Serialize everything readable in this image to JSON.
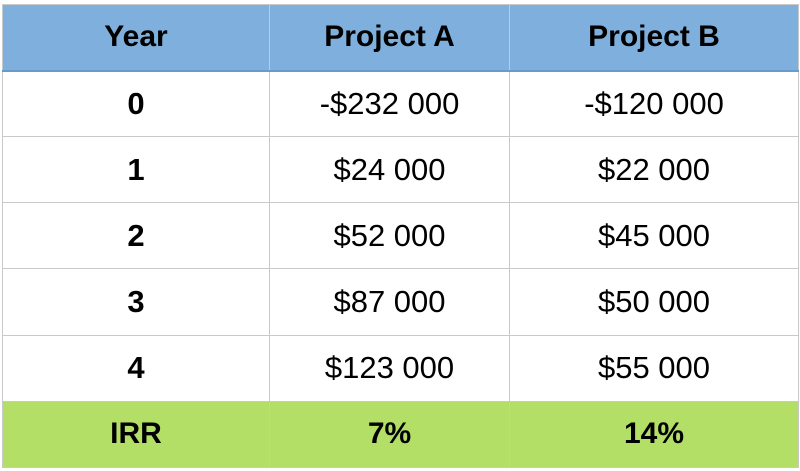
{
  "table": {
    "headers": [
      "Year",
      "Project A",
      "Project B"
    ],
    "rows": [
      {
        "year": "0",
        "project_a": "-$232 000",
        "project_b": "-$120 000"
      },
      {
        "year": "1",
        "project_a": "$24 000",
        "project_b": "$22 000"
      },
      {
        "year": "2",
        "project_a": "$52 000",
        "project_b": "$45 000"
      },
      {
        "year": "3",
        "project_a": "$87 000",
        "project_b": "$50 000"
      },
      {
        "year": "4",
        "project_a": "$123 000",
        "project_b": "$55 000"
      }
    ],
    "irr": {
      "label": "IRR",
      "project_a": "7%",
      "project_b": "14%"
    }
  },
  "colors": {
    "header_bg": "#7fb0dd",
    "irr_row_bg": "#b3df66",
    "grid_line": "#c9c9c9"
  }
}
